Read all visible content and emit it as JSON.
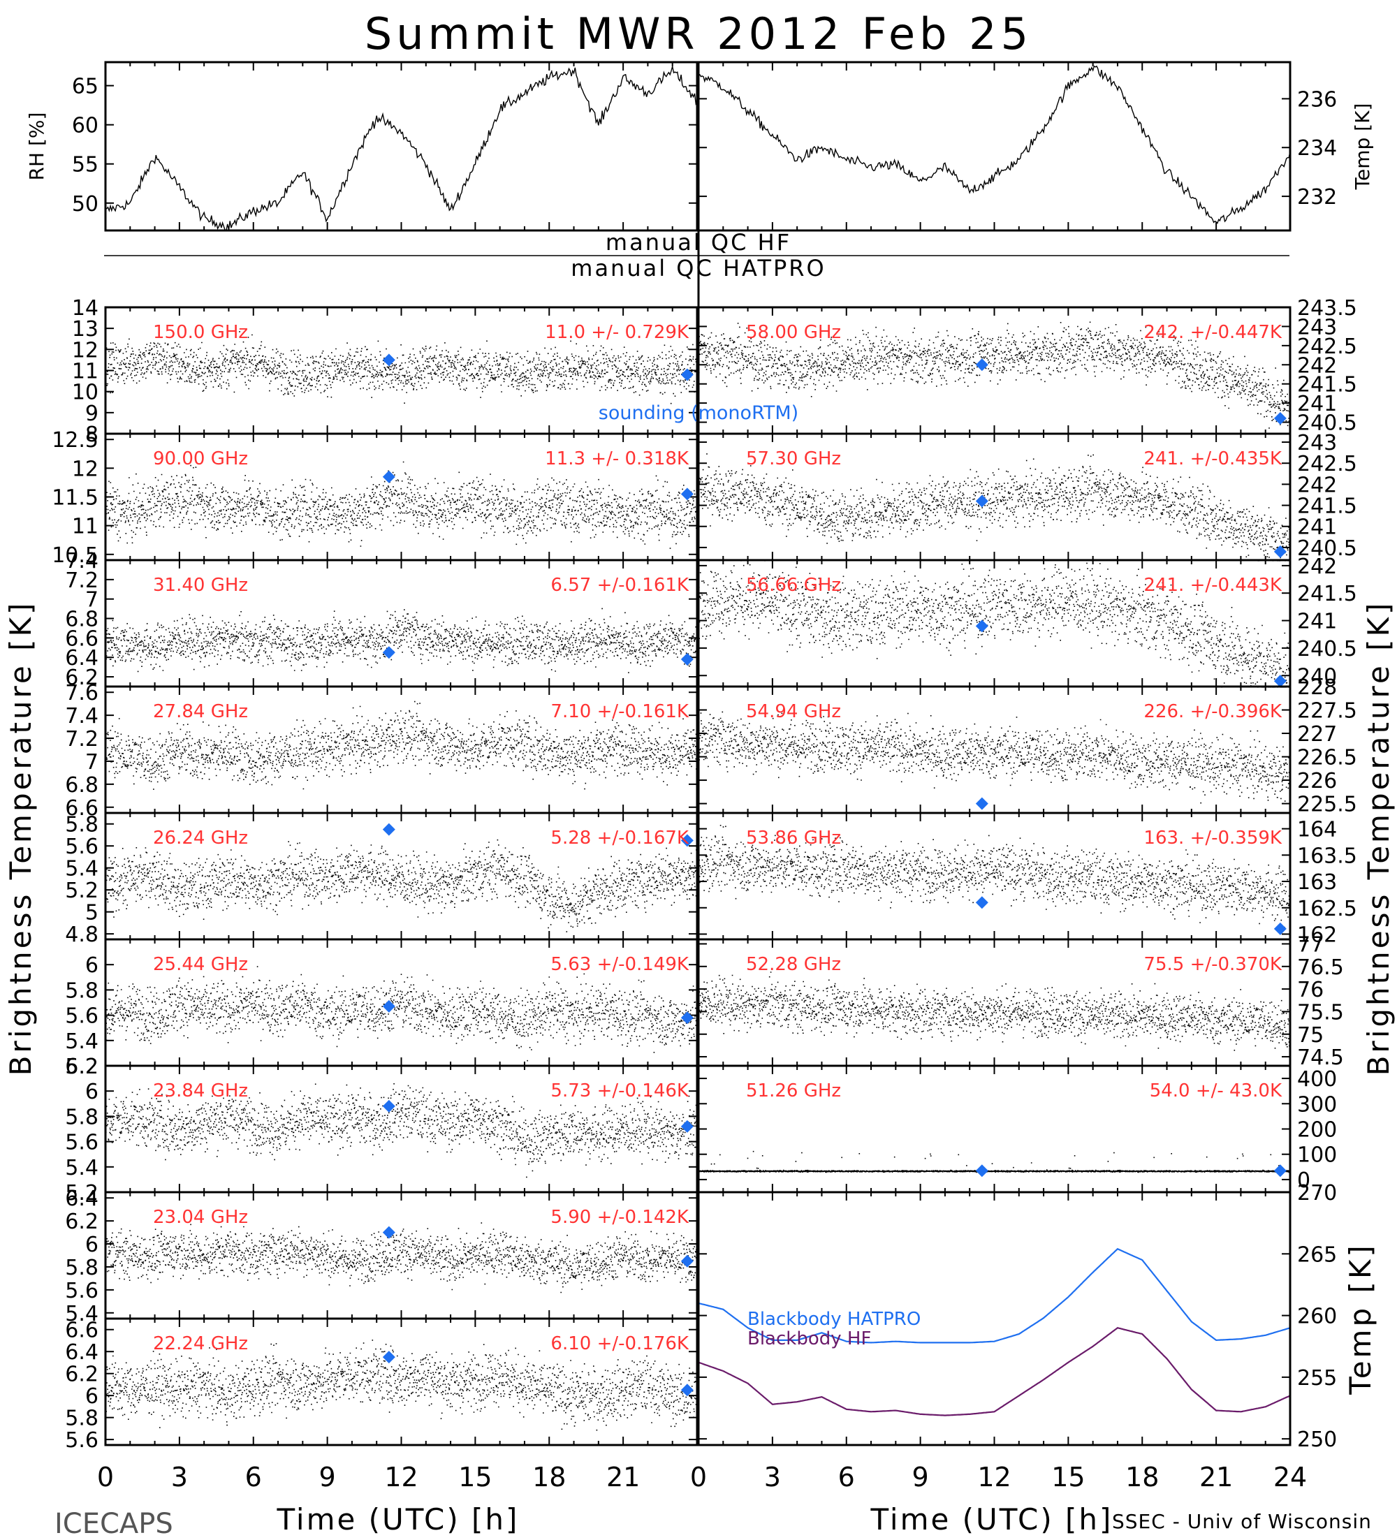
{
  "page": {
    "title": "Summit MWR 2012 Feb 25",
    "footer_left": "ICECAPS",
    "footer_right": "SSEC - Univ of Wisconsin",
    "left_y_title": "Brightness Temperature [K]",
    "right_y_title": "Brightness Temperature [K]",
    "x_title_left": "Time (UTC) [h]",
    "x_title_right": "Time (UTC) [h]",
    "qc_hf": "manual QC HF",
    "qc_hatpro": "manual QC HATPRO",
    "sounding_label": "sounding (monoRTM)"
  },
  "colors": {
    "data": "#000000",
    "sounding": "#1e6ff0",
    "annotation": "#ff3333",
    "bb_hatpro": "#1e6ff0",
    "bb_hf": "#6a1b6a"
  },
  "chart_data": [
    {
      "type": "line",
      "name": "RH",
      "ylabel": "RH [%]",
      "ylim": [
        46.5,
        68
      ],
      "yticks": [
        50,
        55,
        60,
        65
      ],
      "x": [
        0,
        1,
        2,
        3,
        4,
        5,
        6,
        7,
        8,
        9,
        10,
        11,
        12,
        13,
        14,
        15,
        16,
        17,
        18,
        19,
        20,
        21,
        22,
        23,
        24
      ],
      "y": [
        49,
        50,
        56,
        52,
        48,
        47,
        49,
        50,
        54,
        48,
        55,
        61,
        59,
        55,
        49,
        55,
        62,
        64,
        66,
        67,
        60,
        66,
        64,
        67,
        63
      ]
    },
    {
      "type": "line",
      "name": "Temp",
      "ylabel": "Temp [K]",
      "ylim": [
        230.6,
        237.5
      ],
      "yticks": [
        232,
        234,
        236
      ],
      "x": [
        0,
        1,
        2,
        3,
        4,
        5,
        6,
        7,
        8,
        9,
        10,
        11,
        12,
        13,
        14,
        15,
        16,
        17,
        18,
        19,
        20,
        21,
        22,
        23,
        24
      ],
      "y": [
        237,
        236.5,
        235.5,
        234.5,
        233.5,
        234,
        233.5,
        233.2,
        233.3,
        232.6,
        233.2,
        232.2,
        232.8,
        233.5,
        234.8,
        236.5,
        237.3,
        236.5,
        234.8,
        233,
        232,
        230.9,
        231.5,
        232.3,
        233.8
      ]
    },
    {
      "type": "scatter",
      "freq": "150.0 GHz",
      "stats": "11.0 +/- 0.729K",
      "ylim": [
        8,
        14
      ],
      "yticks": [
        8,
        9,
        10,
        11,
        12,
        13,
        14
      ],
      "side": "left",
      "mean": [
        11.2,
        11.4,
        11.6,
        11.3,
        11.0,
        11.3,
        11.5,
        11.0,
        10.9,
        11.0,
        11.1,
        11.0,
        10.8,
        11.3,
        11.2,
        11.0,
        11.1,
        10.9,
        11.0,
        11.1,
        11.2,
        11.0,
        10.9,
        11.0,
        11.0
      ],
      "noise": 0.73,
      "sounding_x": [
        11.5,
        23.6
      ],
      "sounding_y": [
        11.5,
        10.8
      ]
    },
    {
      "type": "scatter",
      "freq": "90.00 GHz",
      "stats": "11.3 +/- 0.318K",
      "ylim": [
        10.4,
        12.6
      ],
      "yticks": [
        10.5,
        11.0,
        11.5,
        12.0,
        12.5
      ],
      "side": "left",
      "mean": [
        11.3,
        11.2,
        11.4,
        11.5,
        11.4,
        11.3,
        11.4,
        11.2,
        11.3,
        11.3,
        11.2,
        11.4,
        11.6,
        11.3,
        11.3,
        11.4,
        11.3,
        11.2,
        11.4,
        11.3,
        11.3,
        11.2,
        11.3,
        11.2,
        11.3
      ],
      "noise": 0.32,
      "sounding_x": [
        11.5,
        23.6
      ],
      "sounding_y": [
        11.85,
        11.55
      ]
    },
    {
      "type": "scatter",
      "freq": "31.40 GHz",
      "stats": "6.57 +/-0.161K",
      "ylim": [
        6.1,
        7.4
      ],
      "yticks": [
        6.2,
        6.4,
        6.6,
        6.8,
        7.0,
        7.2,
        7.4
      ],
      "side": "left",
      "mean": [
        6.55,
        6.55,
        6.5,
        6.6,
        6.55,
        6.6,
        6.55,
        6.6,
        6.5,
        6.6,
        6.6,
        6.55,
        6.7,
        6.6,
        6.6,
        6.55,
        6.55,
        6.6,
        6.55,
        6.5,
        6.6,
        6.55,
        6.55,
        6.6,
        6.5
      ],
      "noise": 0.16,
      "sounding_x": [
        11.5,
        23.6
      ],
      "sounding_y": [
        6.45,
        6.38
      ]
    },
    {
      "type": "scatter",
      "freq": "27.84 GHz",
      "stats": "7.10 +/-0.161K",
      "ylim": [
        6.55,
        7.65
      ],
      "yticks": [
        6.6,
        6.8,
        7.0,
        7.2,
        7.4,
        7.6
      ],
      "side": "left",
      "mean": [
        7.1,
        7.05,
        7.0,
        7.1,
        7.05,
        7.1,
        7.0,
        7.05,
        7.1,
        7.1,
        7.15,
        7.15,
        7.25,
        7.2,
        7.15,
        7.1,
        7.2,
        7.15,
        7.1,
        7.05,
        7.1,
        7.15,
        7.1,
        7.05,
        7.1
      ],
      "noise": 0.16,
      "sounding_x": [],
      "sounding_y": []
    },
    {
      "type": "scatter",
      "freq": "26.24 GHz",
      "stats": "5.28 +/-0.167K",
      "ylim": [
        4.75,
        5.9
      ],
      "yticks": [
        4.8,
        5.0,
        5.2,
        5.4,
        5.6,
        5.8
      ],
      "side": "left",
      "mean": [
        5.25,
        5.3,
        5.35,
        5.2,
        5.25,
        5.3,
        5.25,
        5.3,
        5.35,
        5.3,
        5.4,
        5.35,
        5.3,
        5.25,
        5.25,
        5.35,
        5.4,
        5.3,
        5.15,
        5.05,
        5.2,
        5.25,
        5.3,
        5.35,
        5.3
      ],
      "noise": 0.17,
      "sounding_x": [
        11.5,
        23.6
      ],
      "sounding_y": [
        5.75,
        5.65
      ]
    },
    {
      "type": "scatter",
      "freq": "25.44 GHz",
      "stats": "5.63 +/-0.149K",
      "ylim": [
        5.2,
        6.2
      ],
      "yticks": [
        5.2,
        5.4,
        5.6,
        5.8,
        6.0
      ],
      "side": "left",
      "mean": [
        5.6,
        5.65,
        5.6,
        5.7,
        5.65,
        5.65,
        5.7,
        5.65,
        5.7,
        5.6,
        5.65,
        5.65,
        5.7,
        5.65,
        5.6,
        5.65,
        5.6,
        5.55,
        5.65,
        5.6,
        5.65,
        5.6,
        5.6,
        5.55,
        5.6
      ],
      "noise": 0.15,
      "sounding_x": [
        11.5,
        23.6
      ],
      "sounding_y": [
        5.67,
        5.58
      ]
    },
    {
      "type": "scatter",
      "freq": "23.84 GHz",
      "stats": "5.73 +/-0.146K",
      "ylim": [
        5.2,
        6.2
      ],
      "yticks": [
        5.2,
        5.4,
        5.6,
        5.8,
        6.0,
        6.2
      ],
      "side": "left",
      "mean": [
        5.75,
        5.8,
        5.75,
        5.7,
        5.75,
        5.8,
        5.75,
        5.7,
        5.8,
        5.75,
        5.8,
        5.75,
        5.85,
        5.8,
        5.75,
        5.8,
        5.75,
        5.6,
        5.65,
        5.7,
        5.65,
        5.7,
        5.7,
        5.65,
        5.7
      ],
      "noise": 0.15,
      "sounding_x": [
        11.5,
        23.6
      ],
      "sounding_y": [
        5.88,
        5.72
      ]
    },
    {
      "type": "scatter",
      "freq": "23.04 GHz",
      "stats": "5.90 +/-0.142K",
      "ylim": [
        5.35,
        6.45
      ],
      "yticks": [
        5.4,
        5.6,
        5.8,
        6.0,
        6.2,
        6.4
      ],
      "side": "left",
      "mean": [
        5.95,
        5.9,
        5.9,
        5.95,
        5.9,
        5.95,
        5.9,
        5.95,
        5.95,
        5.9,
        5.85,
        5.9,
        5.95,
        5.9,
        5.85,
        5.9,
        5.95,
        5.85,
        5.85,
        5.8,
        5.85,
        5.9,
        5.85,
        5.9,
        5.85
      ],
      "noise": 0.14,
      "sounding_x": [
        11.5,
        23.6
      ],
      "sounding_y": [
        6.1,
        5.85
      ]
    },
    {
      "type": "scatter",
      "freq": "22.24 GHz",
      "stats": "6.10 +/-0.176K",
      "ylim": [
        5.55,
        6.7
      ],
      "yticks": [
        5.6,
        5.8,
        6.0,
        6.2,
        6.4,
        6.6
      ],
      "side": "left",
      "mean": [
        6.1,
        6.05,
        6.1,
        6.05,
        6.1,
        6.0,
        6.1,
        6.15,
        6.1,
        6.15,
        6.2,
        6.2,
        6.15,
        6.2,
        6.1,
        6.15,
        6.2,
        6.1,
        6.05,
        6.0,
        6.0,
        6.05,
        6.1,
        6.0,
        6.0
      ],
      "noise": 0.18,
      "sounding_x": [
        11.5,
        23.6
      ],
      "sounding_y": [
        6.35,
        6.05
      ]
    },
    {
      "type": "scatter",
      "freq": "58.00 GHz",
      "stats": "242. +/-0.447K",
      "ylim": [
        240.2,
        243.5
      ],
      "yticks": [
        240.5,
        241.0,
        241.5,
        242.0,
        242.5,
        243.0,
        243.5
      ],
      "side": "right",
      "mean": [
        242.4,
        242.3,
        242.2,
        242.0,
        241.9,
        242.0,
        242.1,
        242.2,
        242.2,
        242.1,
        242.2,
        242.2,
        242.3,
        242.3,
        242.3,
        242.4,
        242.5,
        242.4,
        242.3,
        242.2,
        242.0,
        241.8,
        241.5,
        241.2,
        240.8
      ],
      "noise": 0.45,
      "sounding_x": [
        11.5,
        23.6
      ],
      "sounding_y": [
        242.0,
        240.6
      ]
    },
    {
      "type": "scatter",
      "freq": "57.30 GHz",
      "stats": "241. +/-0.435K",
      "ylim": [
        240.2,
        243.2
      ],
      "yticks": [
        240.5,
        241.0,
        241.5,
        242.0,
        242.5,
        243.0
      ],
      "side": "right",
      "mean": [
        241.9,
        241.8,
        241.8,
        241.6,
        241.5,
        241.3,
        241.2,
        241.3,
        241.4,
        241.5,
        241.6,
        241.6,
        241.6,
        241.7,
        241.7,
        241.8,
        241.9,
        241.8,
        241.7,
        241.6,
        241.4,
        241.2,
        241.0,
        240.8,
        240.5
      ],
      "noise": 0.44,
      "sounding_x": [
        11.5,
        23.6
      ],
      "sounding_y": [
        241.6,
        240.4
      ]
    },
    {
      "type": "scatter",
      "freq": "56.66 GHz",
      "stats": "241. +/-0.443K",
      "ylim": [
        239.8,
        242.1
      ],
      "yticks": [
        240.0,
        240.5,
        241.0,
        241.5,
        242.0
      ],
      "side": "right",
      "mean": [
        241.4,
        241.4,
        241.4,
        241.3,
        241.2,
        241.1,
        241.1,
        241.1,
        241.2,
        241.2,
        241.2,
        241.2,
        241.3,
        241.3,
        241.3,
        241.4,
        241.3,
        241.2,
        241.1,
        241.0,
        240.8,
        240.6,
        240.4,
        240.2,
        240.0
      ],
      "noise": 0.44,
      "sounding_x": [
        11.5,
        23.6
      ],
      "sounding_y": [
        240.9,
        239.9
      ]
    },
    {
      "type": "scatter",
      "freq": "54.94 GHz",
      "stats": "226. +/-0.396K",
      "ylim": [
        225.3,
        228.0
      ],
      "yticks": [
        225.5,
        226.0,
        226.5,
        227.0,
        227.5,
        228.0
      ],
      "side": "right",
      "mean": [
        226.9,
        226.9,
        226.8,
        226.8,
        226.7,
        226.8,
        226.7,
        226.7,
        226.7,
        226.6,
        226.6,
        226.6,
        226.6,
        226.6,
        226.6,
        226.5,
        226.6,
        226.5,
        226.4,
        226.4,
        226.4,
        226.3,
        226.3,
        226.2,
        226.1
      ],
      "noise": 0.4,
      "sounding_x": [
        11.5
      ],
      "sounding_y": [
        225.5
      ]
    },
    {
      "type": "scatter",
      "freq": "53.86 GHz",
      "stats": "163. +/-0.359K",
      "ylim": [
        161.9,
        164.3
      ],
      "yticks": [
        162.0,
        162.5,
        163.0,
        163.5,
        164.0
      ],
      "side": "right",
      "mean": [
        163.4,
        163.4,
        163.3,
        163.3,
        163.3,
        163.2,
        163.3,
        163.2,
        163.2,
        163.2,
        163.2,
        163.2,
        163.2,
        163.2,
        163.1,
        163.1,
        163.1,
        163.0,
        163.0,
        163.0,
        162.9,
        162.9,
        162.9,
        162.8,
        162.7
      ],
      "noise": 0.36,
      "sounding_x": [
        11.5,
        23.6
      ],
      "sounding_y": [
        162.6,
        162.1
      ]
    },
    {
      "type": "scatter",
      "freq": "52.28 GHz",
      "stats": "75.5 +/-0.370K",
      "ylim": [
        74.3,
        77.1
      ],
      "yticks": [
        74.5,
        75.0,
        75.5,
        76.0,
        76.5,
        77.0
      ],
      "side": "right",
      "mean": [
        75.7,
        75.7,
        75.6,
        75.7,
        75.6,
        75.6,
        75.6,
        75.6,
        75.5,
        75.5,
        75.5,
        75.5,
        75.5,
        75.5,
        75.5,
        75.5,
        75.4,
        75.4,
        75.4,
        75.4,
        75.4,
        75.3,
        75.3,
        75.3,
        75.2
      ],
      "noise": 0.37,
      "sounding_x": [],
      "sounding_y": []
    },
    {
      "type": "scatter",
      "freq": "51.26 GHz",
      "stats": "54.0 +/- 43.0K",
      "ylim": [
        -50,
        450
      ],
      "yticks": [
        0,
        100,
        200,
        300,
        400
      ],
      "side": "right",
      "mean": [
        35,
        35,
        35,
        35,
        35,
        35,
        35,
        35,
        35,
        35,
        35,
        35,
        35,
        35,
        35,
        35,
        35,
        35,
        35,
        35,
        35,
        35,
        35,
        35,
        35
      ],
      "noise": 2,
      "sounding_x": [
        11.5,
        23.6
      ],
      "sounding_y": [
        35,
        35
      ]
    },
    {
      "type": "line",
      "name": "Blackbody",
      "ylabel": "Temp [K]",
      "ylim": [
        249.5,
        270
      ],
      "yticks": [
        250,
        255,
        260,
        265,
        270
      ],
      "series": [
        {
          "name": "Blackbody HATPRO",
          "color": "#1e6ff0",
          "x": [
            0,
            1,
            2,
            3,
            4,
            5,
            6,
            7,
            8,
            9,
            10,
            11,
            12,
            13,
            14,
            15,
            16,
            17,
            18,
            19,
            20,
            21,
            22,
            23,
            24
          ],
          "y": [
            261,
            260.5,
            259,
            258,
            258,
            258.6,
            257.9,
            257.8,
            257.9,
            257.8,
            257.8,
            257.8,
            257.9,
            258.5,
            259.8,
            261.5,
            263.5,
            265.4,
            264.5,
            262,
            259.5,
            258,
            258.1,
            258.4,
            259
          ]
        },
        {
          "name": "Blackbody HF",
          "color": "#6a1b6a",
          "x": [
            0,
            1,
            2,
            3,
            4,
            5,
            6,
            7,
            8,
            9,
            10,
            11,
            12,
            13,
            14,
            15,
            16,
            17,
            18,
            19,
            20,
            21,
            22,
            23,
            24
          ],
          "y": [
            256.2,
            255.5,
            254.5,
            252.8,
            253,
            253.4,
            252.4,
            252.2,
            252.3,
            252.0,
            251.9,
            252.0,
            252.2,
            253.5,
            254.8,
            256.2,
            257.5,
            259,
            258.5,
            256.5,
            254,
            252.3,
            252.2,
            252.6,
            253.5
          ]
        }
      ]
    }
  ]
}
